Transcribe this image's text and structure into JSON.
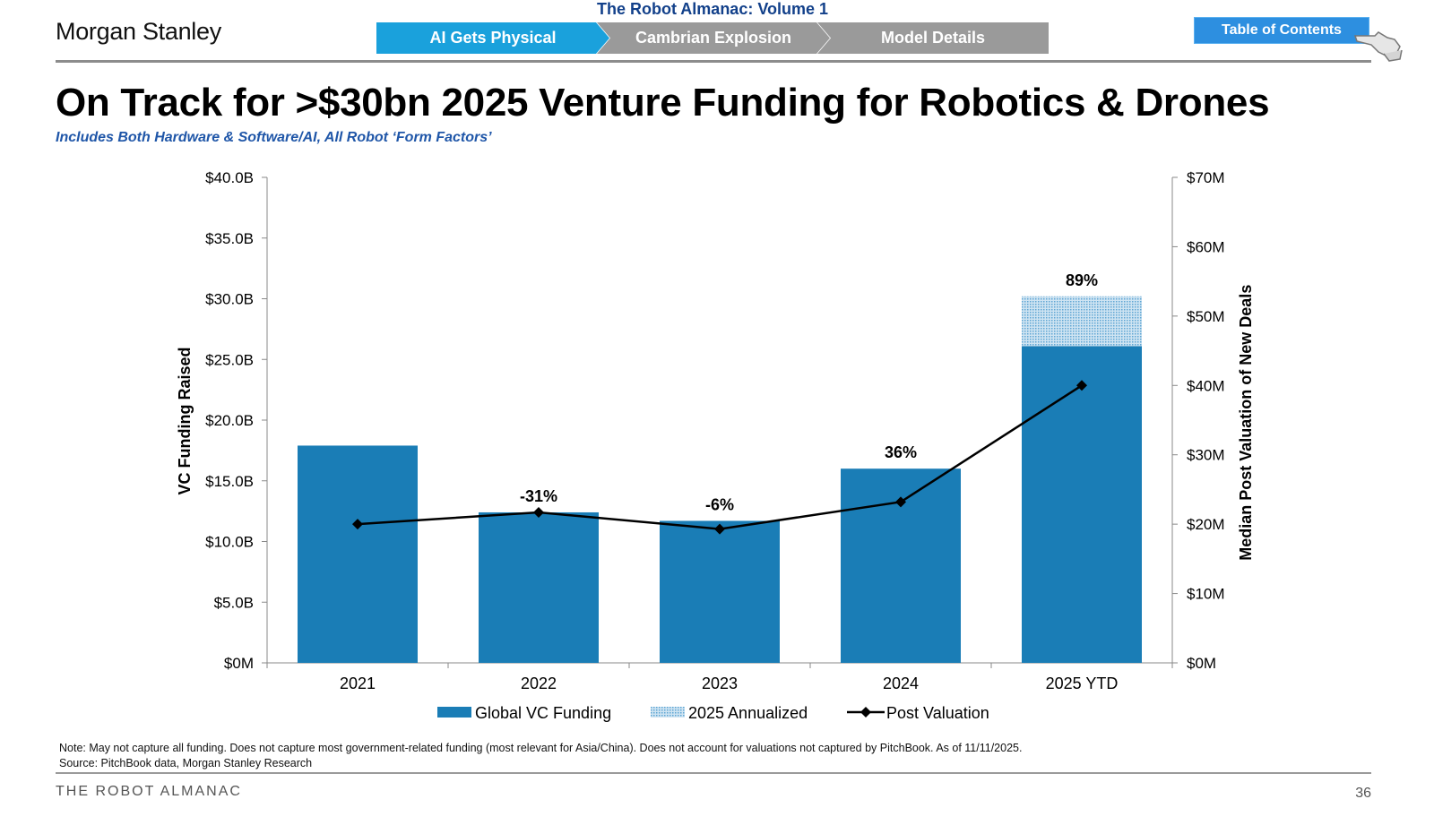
{
  "header": {
    "logo": "Morgan Stanley",
    "almanac_title": "The Robot Almanac: Volume 1",
    "nav": [
      "AI Gets Physical",
      "Cambrian Explosion",
      "Model Details"
    ],
    "toc_label": "Table of Contents"
  },
  "title": "On Track for >$30bn 2025 Venture Funding for Robotics & Drones",
  "subtitle": "Includes Both Hardware & Software/AI, All Robot ‘Form Factors’",
  "colors": {
    "bar": "#1a7db6",
    "annualized": "#a9cde6",
    "line": "#000000",
    "nav_active": "#1aa1dc",
    "nav_inactive": "#9a9a9a",
    "subtitle": "#1f56a8"
  },
  "chart_data": {
    "type": "bar",
    "categories": [
      "2021",
      "2022",
      "2023",
      "2024",
      "2025 YTD"
    ],
    "series": [
      {
        "name": "Global VC Funding",
        "kind": "bar",
        "axis": "left",
        "values": [
          17.9,
          12.4,
          11.7,
          16.0,
          26.1
        ]
      },
      {
        "name": "2025 Annualized",
        "kind": "bar-stacked",
        "axis": "left",
        "values": [
          0,
          0,
          0,
          0,
          4.1
        ]
      },
      {
        "name": "Post Valuation",
        "kind": "line",
        "axis": "right",
        "values": [
          20.0,
          21.7,
          19.3,
          23.2,
          40.0
        ]
      }
    ],
    "data_labels": [
      "",
      "-31%",
      "-6%",
      "36%",
      "89%"
    ],
    "y_left": {
      "label": "VC Funding Raised",
      "min": 0,
      "max": 40,
      "ticks": [
        "$0M",
        "$5.0B",
        "$10.0B",
        "$15.0B",
        "$20.0B",
        "$25.0B",
        "$30.0B",
        "$35.0B",
        "$40.0B"
      ]
    },
    "y_right": {
      "label": "Median Post Valuation of New Deals",
      "min": 0,
      "max": 70,
      "ticks": [
        "$0M",
        "$10M",
        "$20M",
        "$30M",
        "$40M",
        "$50M",
        "$60M",
        "$70M"
      ]
    },
    "legend": [
      "Global VC Funding",
      "2025 Annualized",
      "Post Valuation"
    ],
    "legend_position": "bottom"
  },
  "note": "Note: May not capture all funding. Does not capture most government-related funding (most relevant for Asia/China). Does not account for valuations not captured by PitchBook. As of 11/11/2025.",
  "source": "Source: PitchBook data, Morgan Stanley Research",
  "footer": {
    "left": "THE ROBOT ALMANAC",
    "page": "36"
  }
}
